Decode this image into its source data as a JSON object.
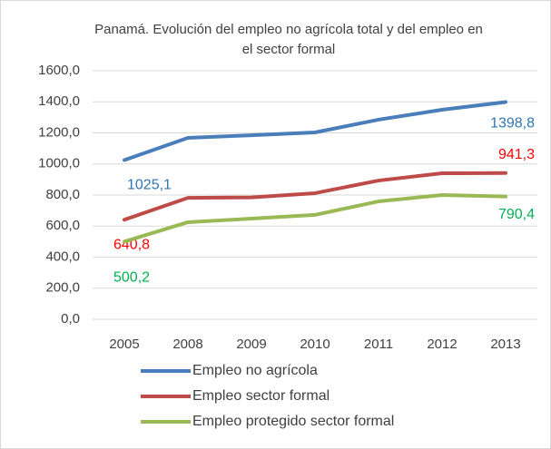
{
  "chart_data": {
    "type": "line",
    "title": "Panamá. Evolución del empleo no agrícola total y del empleo en el sector formal",
    "categories": [
      "2005",
      "2008",
      "2009",
      "2010",
      "2011",
      "2012",
      "2013"
    ],
    "series": [
      {
        "name": "Empleo no agrícola",
        "color": "#4a7ebb",
        "label_color": "#2e75b6",
        "values": [
          1025.1,
          1168,
          1185,
          1203,
          1285,
          1349,
          1398.8
        ],
        "value_labels": [
          "1025,1",
          null,
          null,
          null,
          null,
          null,
          "1398,8"
        ]
      },
      {
        "name": "Empleo sector formal",
        "color": "#be4b48",
        "label_color": "#ff0000",
        "values": [
          640.8,
          782,
          785,
          812,
          893,
          940,
          941.3
        ],
        "value_labels": [
          "640,8",
          null,
          null,
          null,
          null,
          null,
          "941,3"
        ]
      },
      {
        "name": "Empleo protegido sector formal",
        "color": "#98b954",
        "label_color": "#00b050",
        "values": [
          500.2,
          625,
          648,
          672,
          759,
          800,
          790.4
        ],
        "value_labels": [
          "500,2",
          null,
          null,
          null,
          null,
          null,
          "790,4"
        ]
      }
    ],
    "ylim": [
      0,
      1600
    ],
    "yticks": [
      {
        "value": 0,
        "label": "0,0"
      },
      {
        "value": 200,
        "label": "200,0"
      },
      {
        "value": 400,
        "label": "400,0"
      },
      {
        "value": 600,
        "label": "600,0"
      },
      {
        "value": 800,
        "label": "800,0"
      },
      {
        "value": 1000,
        "label": "1000,0"
      },
      {
        "value": 1200,
        "label": "1200,0"
      },
      {
        "value": 1400,
        "label": "1400,0"
      },
      {
        "value": 1600,
        "label": "1600,0"
      }
    ],
    "grid": true,
    "legend": "bottom"
  }
}
